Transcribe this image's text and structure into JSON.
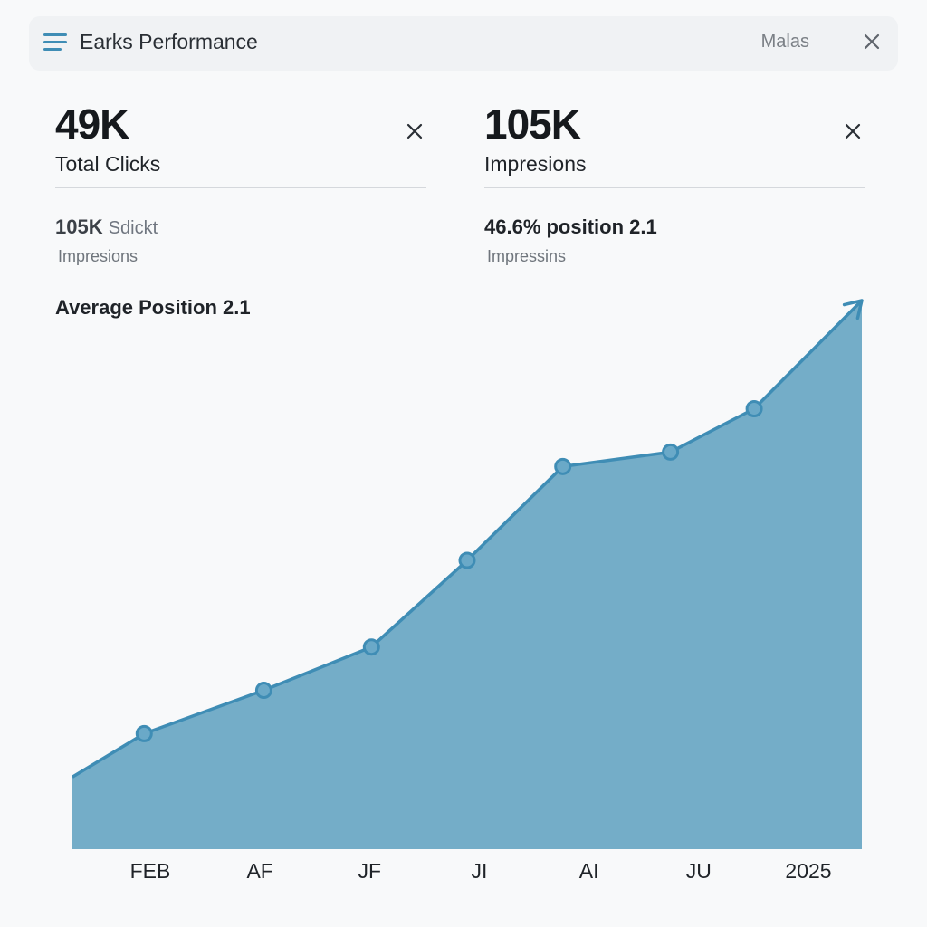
{
  "header": {
    "title": "Earks Performance",
    "right_label": "Malas"
  },
  "cards": {
    "left": {
      "value": "49K",
      "label": "Total Clicks",
      "sub_value": "105K",
      "sub_value_suffix": "Sdickt",
      "sub_label": "Impresions"
    },
    "right": {
      "value": "105K",
      "label": "Impresions",
      "sub_value": "46.6% position 2.1",
      "sub_label": "Impressins"
    }
  },
  "avg_position": "Average Position 2.1",
  "colors": {
    "area": "#74adc8",
    "line": "#3f8db5",
    "accent": "#3f8db5"
  },
  "icons": [
    "menu-icon",
    "close-icon",
    "trend-arrow-icon"
  ],
  "chart_data": {
    "type": "area",
    "title": "",
    "xlabel": "",
    "ylabel": "",
    "categories": [
      "FEB",
      "AF",
      "JF",
      "JI",
      "AI",
      "JU",
      "2025"
    ],
    "points": [
      {
        "x": 0.0,
        "y": 10
      },
      {
        "x": 0.6,
        "y": 16
      },
      {
        "x": 1.6,
        "y": 22
      },
      {
        "x": 2.5,
        "y": 28
      },
      {
        "x": 3.3,
        "y": 40
      },
      {
        "x": 4.1,
        "y": 53
      },
      {
        "x": 5.0,
        "y": 55
      },
      {
        "x": 5.7,
        "y": 61
      },
      {
        "x": 6.6,
        "y": 76
      }
    ],
    "markers": [
      1,
      2,
      3,
      4,
      5,
      6,
      7
    ],
    "xlim": [
      0,
      6.6
    ],
    "ylim": [
      0,
      80
    ],
    "grid": false,
    "legend": "none"
  }
}
